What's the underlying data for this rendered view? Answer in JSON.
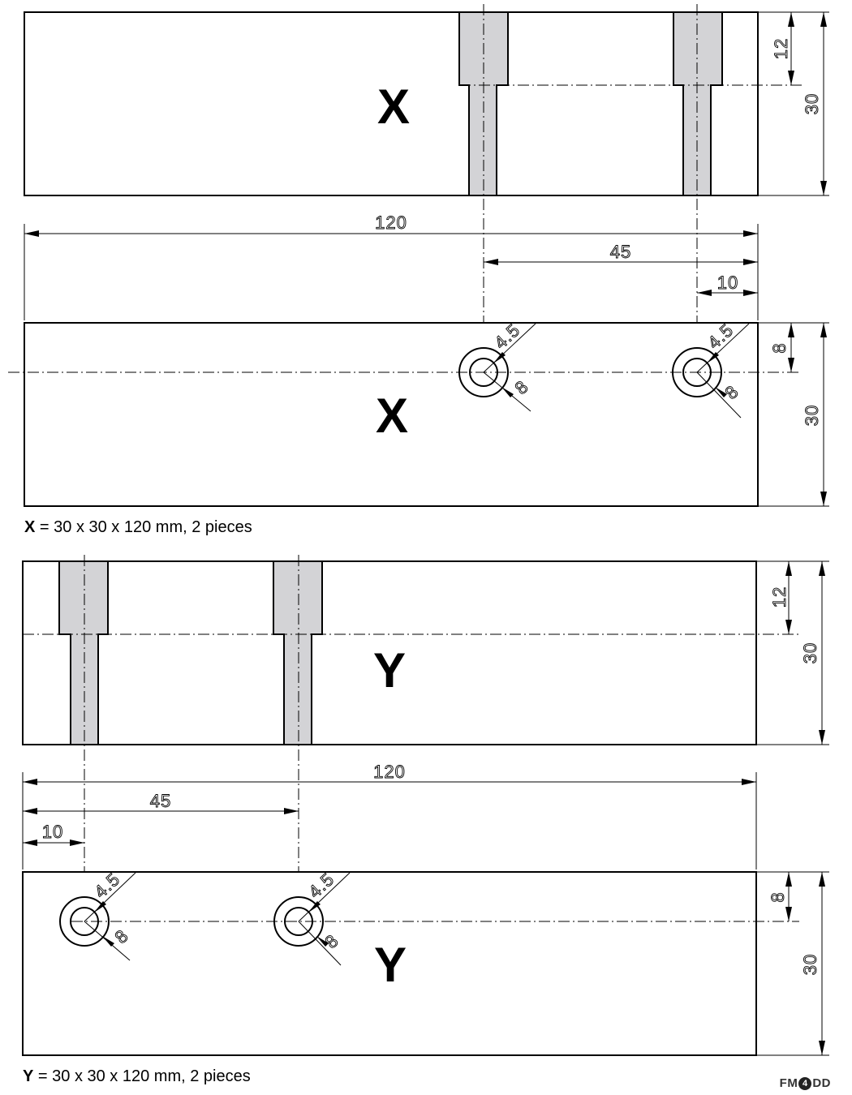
{
  "parts": [
    {
      "id": "X",
      "side_label": "X",
      "top_label": "X",
      "caption_letter": "X",
      "caption_text": "= 30 x 30 x 120 mm, 2 pieces",
      "dims": {
        "length": "120",
        "hole_pos_1": "45",
        "hole_pos_2": "10",
        "height": "30",
        "counterbore_depth": "12",
        "hole_offset": "8",
        "bore_dia": "4.5",
        "counterbore_dia": "8"
      }
    },
    {
      "id": "Y",
      "side_label": "Y",
      "top_label": "Y",
      "caption_letter": "Y",
      "caption_text": "= 30 x 30 x 120 mm, 2 pieces",
      "dims": {
        "length": "120",
        "hole_pos_1": "45",
        "hole_pos_2": "10",
        "height": "30",
        "counterbore_depth": "12",
        "hole_offset": "8",
        "bore_dia": "4.5",
        "counterbore_dia": "8"
      }
    }
  ],
  "logo": {
    "left": "FM",
    "mid": "4",
    "right": "DD"
  }
}
